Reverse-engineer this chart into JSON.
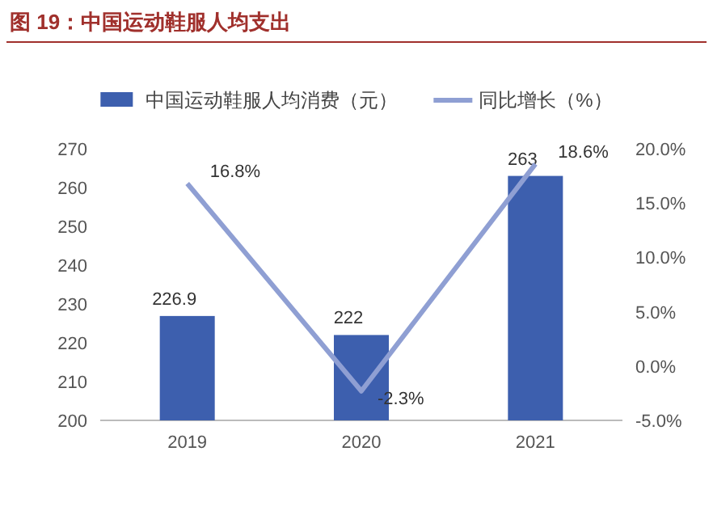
{
  "chart_data": {
    "type": "bar",
    "title": "图 19：中国运动鞋服人均支出",
    "categories": [
      "2019",
      "2020",
      "2021"
    ],
    "series": [
      {
        "name": "中国运动鞋服人均消费（元）",
        "color": "#3d5fae",
        "values": [
          226.9,
          222,
          263
        ],
        "value_labels": [
          "226.9",
          "222",
          "263"
        ]
      },
      {
        "name": "同比增长（%）",
        "type": "line",
        "axis": "y2",
        "color": "#8f9fd3",
        "values": [
          16.8,
          -2.3,
          18.6
        ],
        "value_labels": [
          "16.8%",
          "-2.3%",
          "18.6%"
        ]
      }
    ],
    "ylim": [
      200,
      270
    ],
    "yticks": [
      200,
      210,
      220,
      230,
      240,
      250,
      260,
      270
    ],
    "y2lim": [
      -5,
      20
    ],
    "y2ticks": [
      {
        "value": -5,
        "label": "-5.0%"
      },
      {
        "value": 0,
        "label": "0.0%"
      },
      {
        "value": 5,
        "label": "5.0%"
      },
      {
        "value": 10,
        "label": "10.0%"
      },
      {
        "value": 15,
        "label": "15.0%"
      },
      {
        "value": 20,
        "label": "20.0%"
      }
    ],
    "legend": "top",
    "grid": false
  }
}
